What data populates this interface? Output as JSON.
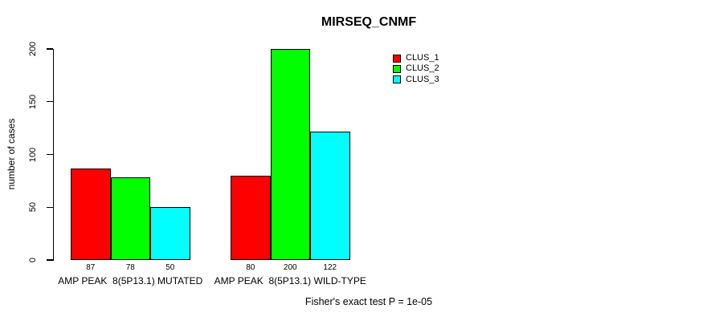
{
  "chart_data": {
    "type": "bar",
    "title": "MIRSEQ_CNMF",
    "ylabel": "number of cases",
    "ylim": [
      0,
      200
    ],
    "yticks": [
      0,
      50,
      100,
      150,
      200
    ],
    "grid": false,
    "legend_position": "top-right",
    "show_bar_value_labels": true,
    "categories": [
      "AMP PEAK  8(5P13.1) MUTATED",
      "AMP PEAK  8(5P13.1) WILD-TYPE"
    ],
    "series": [
      {
        "name": "CLUS_1",
        "color": "#ff0000",
        "values": [
          87,
          80
        ]
      },
      {
        "name": "CLUS_2",
        "color": "#00ff00",
        "values": [
          78,
          200
        ]
      },
      {
        "name": "CLUS_3",
        "color": "#00ffff",
        "values": [
          50,
          122
        ]
      }
    ],
    "caption": "Fisher's exact test P = 1e-05",
    "axis_color": "#000000",
    "bar_border_color": "#000000"
  }
}
